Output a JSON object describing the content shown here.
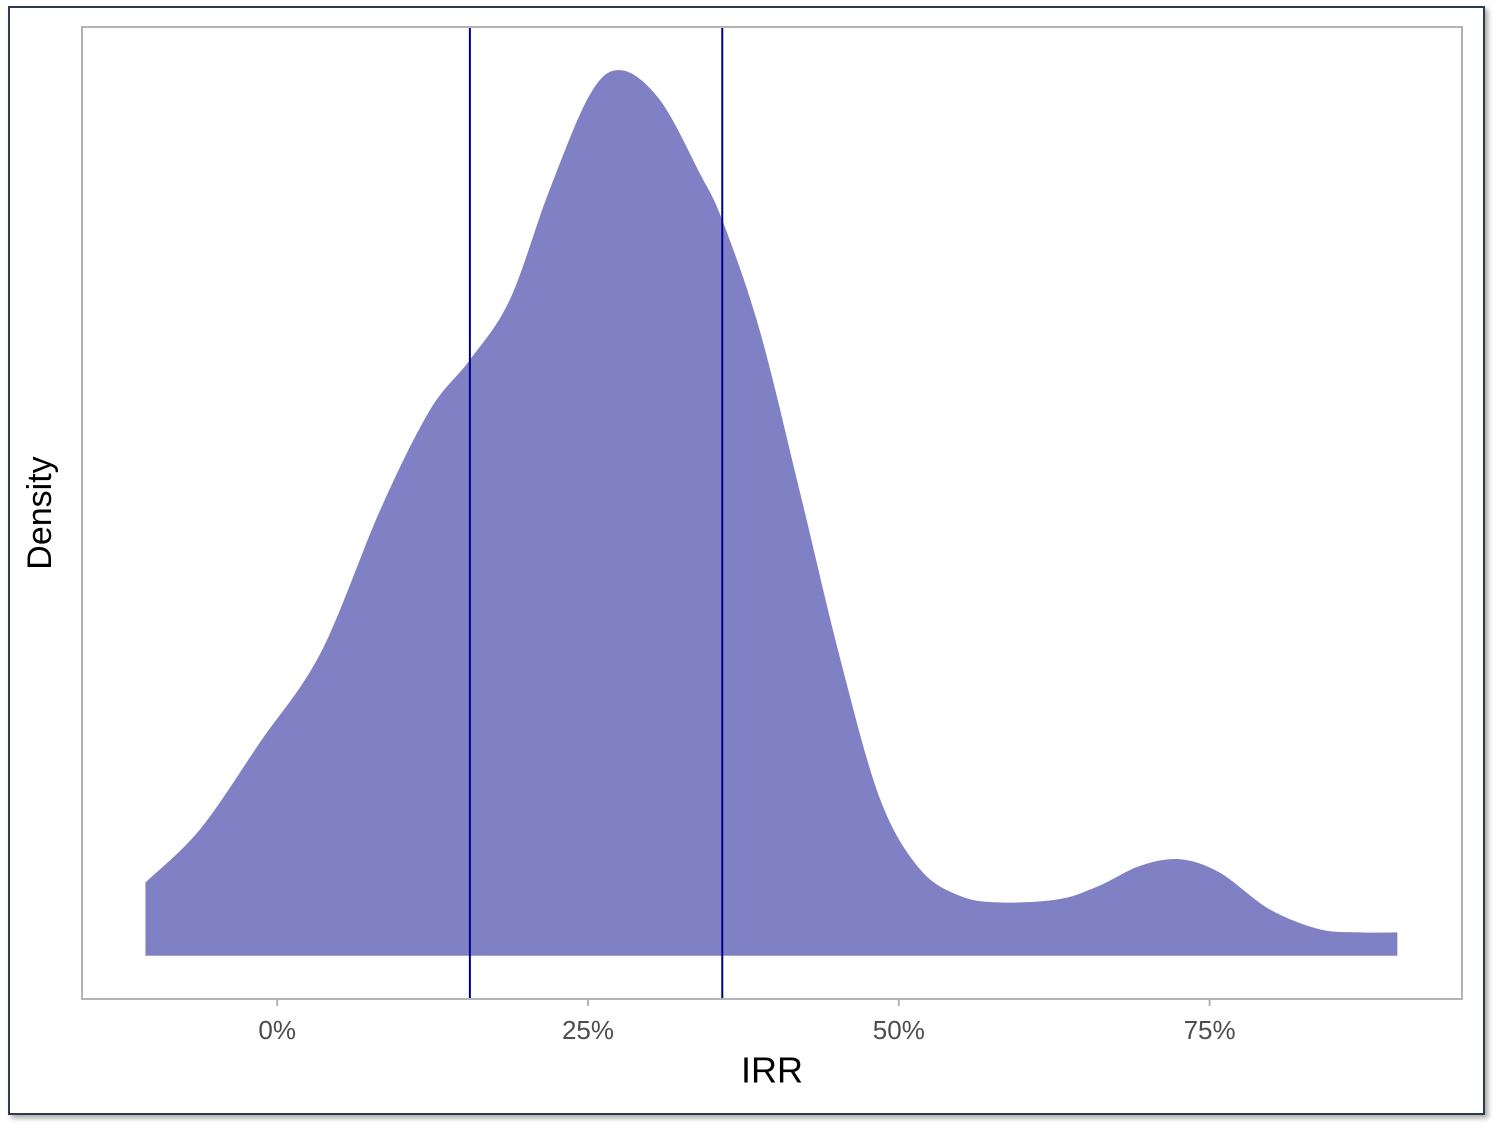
{
  "chart_data": {
    "type": "density",
    "x_label": "IRR",
    "y_label": "Density",
    "x": [
      -10.6,
      -6.2,
      -1.4,
      3.5,
      8.3,
      12.3,
      15.5,
      18.7,
      21.9,
      25.2,
      27.7,
      30.8,
      34.0,
      35.8,
      38.8,
      42.0,
      45.3,
      48.5,
      51.7,
      54.9,
      58.1,
      62.9,
      66.1,
      69.4,
      72.6,
      75.8,
      79.8,
      83.8,
      87.1,
      90.1
    ],
    "values": [
      0.0022,
      0.0038,
      0.0064,
      0.0091,
      0.0134,
      0.0164,
      0.0179,
      0.0197,
      0.023,
      0.0259,
      0.0266,
      0.0257,
      0.0235,
      0.0221,
      0.0188,
      0.014,
      0.0089,
      0.0047,
      0.0026,
      0.0018,
      0.0016,
      0.0017,
      0.0021,
      0.0027,
      0.0029,
      0.0025,
      0.0014,
      0.0008,
      0.0007,
      0.0007
    ],
    "color": "#8080c4",
    "vlines": [
      15.5,
      35.8
    ],
    "vline_color": "#00008b",
    "xlim": [
      -15.7,
      95.3
    ],
    "xticks": [
      {
        "value": 0,
        "label": "0%"
      },
      {
        "value": 25,
        "label": "25%"
      },
      {
        "value": 50,
        "label": "50%"
      },
      {
        "value": 75,
        "label": "75%"
      }
    ],
    "ylim": [
      -0.0013,
      0.0279
    ]
  }
}
